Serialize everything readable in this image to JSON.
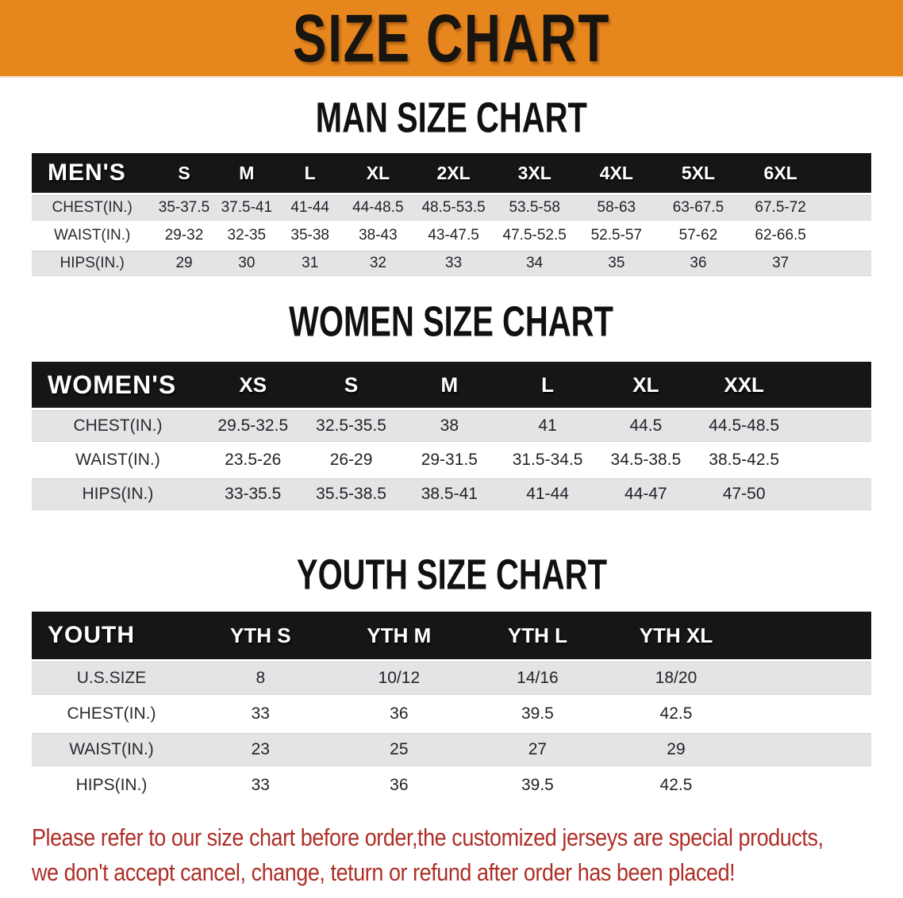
{
  "banner": {
    "title": "SIZE CHART",
    "bg_color": "#E8861E",
    "text_color": "#181410"
  },
  "sections": [
    {
      "heading": "MAN SIZE CHART",
      "table": {
        "label": "MEN'S",
        "columns": [
          "S",
          "M",
          "L",
          "XL",
          "2XL",
          "3XL",
          "4XL",
          "5XL",
          "6XL"
        ],
        "rows": [
          {
            "label": "CHEST(IN.)",
            "values": [
              "35-37.5",
              "37.5-41",
              "41-44",
              "44-48.5",
              "48.5-53.5",
              "53.5-58",
              "58-63",
              "63-67.5",
              "67.5-72"
            ]
          },
          {
            "label": "WAIST(IN.)",
            "values": [
              "29-32",
              "32-35",
              "35-38",
              "38-43",
              "43-47.5",
              "47.5-52.5",
              "52.5-57",
              "57-62",
              "62-66.5"
            ]
          },
          {
            "label": "HIPS(IN.)",
            "values": [
              "29",
              "30",
              "31",
              "32",
              "33",
              "34",
              "35",
              "36",
              "37"
            ]
          }
        ]
      }
    },
    {
      "heading": "WOMEN SIZE CHART",
      "table": {
        "label": "WOMEN'S",
        "columns": [
          "XS",
          "S",
          "M",
          "L",
          "XL",
          "XXL"
        ],
        "rows": [
          {
            "label": "CHEST(IN.)",
            "values": [
              "29.5-32.5",
              "32.5-35.5",
              "38",
              "41",
              "44.5",
              "44.5-48.5"
            ]
          },
          {
            "label": "WAIST(IN.)",
            "values": [
              "23.5-26",
              "26-29",
              "29-31.5",
              "31.5-34.5",
              "34.5-38.5",
              "38.5-42.5"
            ]
          },
          {
            "label": "HIPS(IN.)",
            "values": [
              "33-35.5",
              "35.5-38.5",
              "38.5-41",
              "41-44",
              "44-47",
              "47-50"
            ]
          }
        ]
      }
    },
    {
      "heading": "YOUTH SIZE CHART",
      "table": {
        "label": "YOUTH",
        "columns": [
          "YTH S",
          "YTH M",
          "YTH L",
          "YTH XL"
        ],
        "rows": [
          {
            "label": "U.S.SIZE",
            "values": [
              "8",
              "10/12",
              "14/16",
              "18/20"
            ]
          },
          {
            "label": "CHEST(IN.)",
            "values": [
              "33",
              "36",
              "39.5",
              "42.5"
            ]
          },
          {
            "label": "WAIST(IN.)",
            "values": [
              "23",
              "25",
              "27",
              "29"
            ]
          },
          {
            "label": "HIPS(IN.)",
            "values": [
              "33",
              "36",
              "39.5",
              "42.5"
            ]
          }
        ]
      }
    }
  ],
  "disclaimer": {
    "line1": "Please refer to our size chart before order,the customized jerseys are special products,",
    "line2": "we don't accept cancel, change, teturn or refund after order has been placed!",
    "color": "#AE2F28"
  }
}
